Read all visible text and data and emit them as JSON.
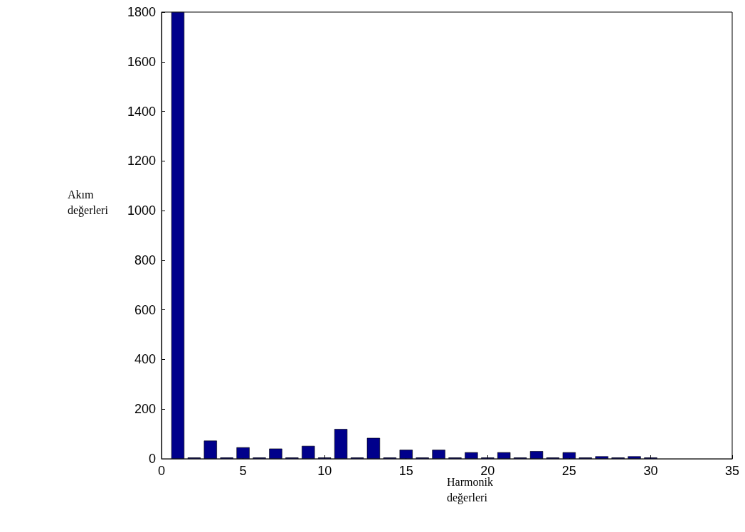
{
  "chart_data": {
    "type": "bar",
    "xlabel": "Harmonik değerleri",
    "ylabel": "Akım değerleri",
    "x": [
      1,
      2,
      3,
      4,
      5,
      6,
      7,
      8,
      9,
      10,
      11,
      12,
      13,
      14,
      15,
      16,
      17,
      18,
      19,
      20,
      21,
      22,
      23,
      24,
      25,
      26,
      27,
      28,
      29,
      30
    ],
    "series": [
      {
        "color": "#00008b",
        "values": [
          1800,
          5,
          73,
          5,
          46,
          5,
          41,
          5,
          52,
          5,
          120,
          5,
          84,
          5,
          36,
          5,
          36,
          5,
          26,
          5,
          26,
          5,
          31,
          5,
          26,
          5,
          10,
          5,
          10,
          5
        ]
      }
    ],
    "xlim": [
      0,
      35
    ],
    "xticks": [
      0,
      5,
      10,
      15,
      20,
      25,
      30,
      35
    ],
    "ylim": [
      0,
      1800
    ],
    "yticks": [
      0,
      200,
      400,
      600,
      800,
      1000,
      1200,
      1400,
      1600,
      1800
    ],
    "grid": false
  }
}
